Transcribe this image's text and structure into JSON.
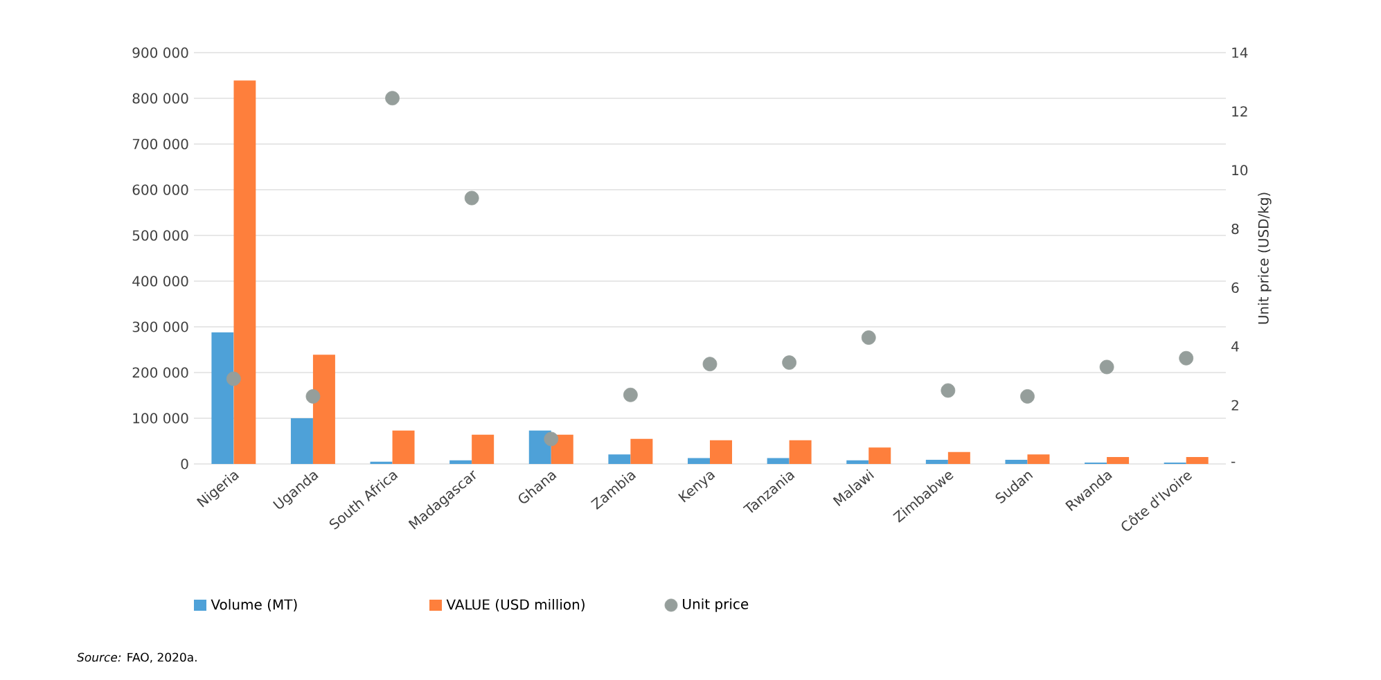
{
  "chart_data": {
    "type": "bar",
    "categories": [
      "Nigeria",
      "Uganda",
      "South Africa",
      "Madagascar",
      "Ghana",
      "Zambia",
      "Kenya",
      "Tanzania",
      "Malawi",
      "Zimbabwe",
      "Sudan",
      "Rwanda",
      "Côte d'Ivoire"
    ],
    "series": [
      {
        "name": "Volume (MT)",
        "color": "#4ea1d8",
        "values": [
          288000,
          100000,
          5000,
          8000,
          73000,
          21000,
          13000,
          13000,
          8000,
          9000,
          9000,
          3000,
          3000
        ]
      },
      {
        "name": "VALUE (USD million)",
        "color": "#fe7f3c",
        "values": [
          839000,
          239000,
          73000,
          64000,
          64000,
          55000,
          52000,
          52000,
          36000,
          26000,
          21000,
          15000,
          15000
        ]
      },
      {
        "name": "Unit price",
        "color": "#959e9b",
        "type": "scatter",
        "axis": "y2",
        "values": [
          2.9,
          2.3,
          12.45,
          9.05,
          0.85,
          2.35,
          3.4,
          3.45,
          4.3,
          2.5,
          2.3,
          3.3,
          3.6
        ]
      }
    ],
    "ylim": [
      0,
      900000
    ],
    "yticks": [
      {
        "value": 0,
        "label": "0"
      },
      {
        "value": 100000,
        "label": "100 000"
      },
      {
        "value": 200000,
        "label": "200 000"
      },
      {
        "value": 300000,
        "label": "300 000"
      },
      {
        "value": 400000,
        "label": "400 000"
      },
      {
        "value": 500000,
        "label": "500 000"
      },
      {
        "value": 600000,
        "label": "600 000"
      },
      {
        "value": 700000,
        "label": "700 000"
      },
      {
        "value": 800000,
        "label": "800 000"
      },
      {
        "value": 900000,
        "label": "900 000"
      }
    ],
    "y2lim": [
      0,
      14
    ],
    "y2ticks": [
      {
        "value": 0,
        "label": "-"
      },
      2,
      4,
      6,
      8,
      10,
      12,
      14
    ],
    "y2label": "Unit price (USD/kg)",
    "grid": "y",
    "legend": "bottom",
    "marker": "circle",
    "annotations": [
      "*Source:* FAO, 2020a."
    ]
  }
}
